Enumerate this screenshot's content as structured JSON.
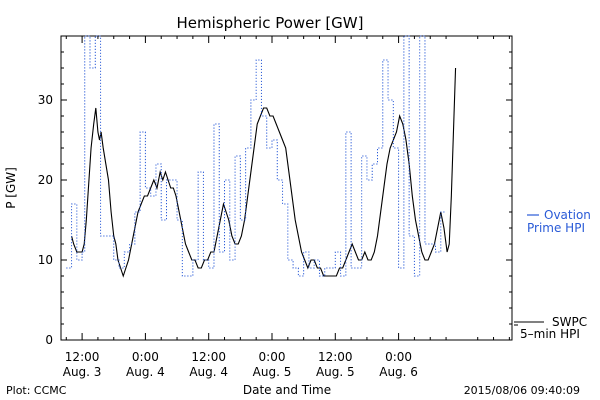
{
  "footer": {
    "plot_credit": "Plot: CCMC",
    "timestamp": "2015/08/06 09:40:09"
  },
  "chart_data": {
    "type": "line",
    "title": "Hemispheric Power [GW]",
    "xlabel": "Date and Time",
    "ylabel": "P [GW]",
    "ylim": [
      0,
      38
    ],
    "xlim_hours": [
      -4,
      81.5
    ],
    "yticks": [
      0,
      10,
      20,
      30
    ],
    "xticks": [
      {
        "hour": 0,
        "time": "12:00",
        "date": "Aug. 3"
      },
      {
        "hour": 12,
        "time": "0:00",
        "date": "Aug. 4"
      },
      {
        "hour": 24,
        "time": "12:00",
        "date": "Aug. 4"
      },
      {
        "hour": 36,
        "time": "0:00",
        "date": "Aug. 5"
      },
      {
        "hour": 48,
        "time": "12:00",
        "date": "Aug. 5"
      },
      {
        "hour": 60,
        "time": "0:00",
        "date": "Aug. 6"
      }
    ],
    "grid": false,
    "colors": {
      "ovation": "#2a5bd7",
      "swpc": "#000000"
    },
    "series": [
      {
        "name": "SWPC 5-min HPI",
        "label_lines": [
          "SWPC",
          "5–min HPI"
        ],
        "style": "solid",
        "color": "#000000",
        "points": [
          [
            -2.0,
            13
          ],
          [
            -1.6,
            12
          ],
          [
            -1.0,
            11
          ],
          [
            -0.5,
            11
          ],
          [
            0.0,
            11
          ],
          [
            0.4,
            12
          ],
          [
            0.8,
            15
          ],
          [
            1.2,
            19
          ],
          [
            1.7,
            24
          ],
          [
            2.2,
            27
          ],
          [
            2.6,
            29
          ],
          [
            3.0,
            26
          ],
          [
            3.3,
            25
          ],
          [
            3.6,
            26
          ],
          [
            4.0,
            24
          ],
          [
            4.5,
            22
          ],
          [
            5.0,
            20
          ],
          [
            5.5,
            16
          ],
          [
            6.0,
            13
          ],
          [
            6.4,
            12
          ],
          [
            6.8,
            10
          ],
          [
            7.3,
            9
          ],
          [
            7.8,
            8
          ],
          [
            8.3,
            9
          ],
          [
            8.8,
            10
          ],
          [
            9.4,
            12
          ],
          [
            10.0,
            14
          ],
          [
            10.6,
            16
          ],
          [
            11.2,
            17
          ],
          [
            11.8,
            18
          ],
          [
            12.4,
            18
          ],
          [
            13.0,
            19
          ],
          [
            13.6,
            20
          ],
          [
            14.2,
            19
          ],
          [
            14.8,
            21
          ],
          [
            15.3,
            20
          ],
          [
            15.8,
            21
          ],
          [
            16.3,
            20
          ],
          [
            16.8,
            19
          ],
          [
            17.3,
            19
          ],
          [
            17.8,
            18
          ],
          [
            18.4,
            16
          ],
          [
            19.0,
            14
          ],
          [
            19.6,
            12
          ],
          [
            20.2,
            11
          ],
          [
            20.8,
            10
          ],
          [
            21.4,
            10
          ],
          [
            22.0,
            9
          ],
          [
            22.6,
            9
          ],
          [
            23.2,
            10
          ],
          [
            23.8,
            10
          ],
          [
            24.4,
            11
          ],
          [
            25.0,
            11
          ],
          [
            25.6,
            13
          ],
          [
            26.2,
            15
          ],
          [
            26.8,
            17
          ],
          [
            27.3,
            16
          ],
          [
            27.8,
            15
          ],
          [
            28.4,
            13
          ],
          [
            29.0,
            12
          ],
          [
            29.6,
            12
          ],
          [
            30.2,
            13
          ],
          [
            30.8,
            15
          ],
          [
            31.4,
            18
          ],
          [
            32.0,
            21
          ],
          [
            32.6,
            24
          ],
          [
            33.2,
            27
          ],
          [
            33.8,
            28
          ],
          [
            34.4,
            29
          ],
          [
            35.0,
            29
          ],
          [
            35.6,
            28
          ],
          [
            36.2,
            28
          ],
          [
            36.8,
            27
          ],
          [
            37.4,
            26
          ],
          [
            38.0,
            25
          ],
          [
            38.6,
            24
          ],
          [
            39.2,
            21
          ],
          [
            39.8,
            18
          ],
          [
            40.4,
            15
          ],
          [
            41.0,
            13
          ],
          [
            41.6,
            11
          ],
          [
            42.2,
            10
          ],
          [
            42.8,
            9
          ],
          [
            43.4,
            10
          ],
          [
            44.0,
            10
          ],
          [
            44.6,
            9
          ],
          [
            45.2,
            9
          ],
          [
            45.8,
            8
          ],
          [
            46.4,
            8
          ],
          [
            47.0,
            8
          ],
          [
            47.6,
            8
          ],
          [
            48.2,
            8
          ],
          [
            48.8,
            9
          ],
          [
            49.4,
            9
          ],
          [
            50.0,
            10
          ],
          [
            50.6,
            11
          ],
          [
            51.2,
            12
          ],
          [
            51.8,
            11
          ],
          [
            52.4,
            10
          ],
          [
            53.0,
            10
          ],
          [
            53.6,
            11
          ],
          [
            54.2,
            10
          ],
          [
            54.8,
            10
          ],
          [
            55.4,
            11
          ],
          [
            56.0,
            13
          ],
          [
            56.6,
            16
          ],
          [
            57.2,
            19
          ],
          [
            57.8,
            22
          ],
          [
            58.4,
            24
          ],
          [
            59.0,
            25
          ],
          [
            59.6,
            26
          ],
          [
            60.2,
            28
          ],
          [
            60.8,
            27
          ],
          [
            61.4,
            25
          ],
          [
            62.0,
            22
          ],
          [
            62.6,
            18
          ],
          [
            63.2,
            15
          ],
          [
            63.8,
            13
          ],
          [
            64.4,
            11
          ],
          [
            65.0,
            10
          ],
          [
            65.6,
            10
          ],
          [
            66.2,
            11
          ],
          [
            66.8,
            12
          ],
          [
            67.4,
            14
          ],
          [
            68.0,
            16
          ],
          [
            68.6,
            14
          ],
          [
            69.2,
            11
          ],
          [
            69.6,
            12
          ],
          [
            70.0,
            18
          ],
          [
            70.4,
            26
          ],
          [
            70.8,
            34
          ]
        ]
      },
      {
        "name": "Ovation Prime HPI",
        "label_lines": [
          "Ovation",
          "Prime HPI"
        ],
        "style": "dotted-step",
        "color": "#2a5bd7",
        "points": [
          [
            -3.0,
            9
          ],
          [
            -2.0,
            17
          ],
          [
            -1.0,
            10
          ],
          [
            0.0,
            11
          ],
          [
            0.5,
            38
          ],
          [
            1.5,
            34
          ],
          [
            2.5,
            38
          ],
          [
            3.5,
            13
          ],
          [
            5.0,
            13
          ],
          [
            6.0,
            10
          ],
          [
            7.0,
            9
          ],
          [
            8.0,
            11
          ],
          [
            9.0,
            12
          ],
          [
            10.0,
            16
          ],
          [
            11.0,
            26
          ],
          [
            12.0,
            19
          ],
          [
            13.0,
            18
          ],
          [
            14.0,
            22
          ],
          [
            15.0,
            15
          ],
          [
            16.0,
            20
          ],
          [
            17.0,
            20
          ],
          [
            18.0,
            15
          ],
          [
            19.0,
            8
          ],
          [
            20.0,
            8
          ],
          [
            21.0,
            10
          ],
          [
            22.0,
            21
          ],
          [
            23.0,
            10
          ],
          [
            24.0,
            9
          ],
          [
            25.0,
            27
          ],
          [
            26.0,
            11
          ],
          [
            27.0,
            20
          ],
          [
            28.0,
            10
          ],
          [
            29.0,
            23
          ],
          [
            30.0,
            15
          ],
          [
            31.0,
            24
          ],
          [
            32.0,
            30
          ],
          [
            33.0,
            35
          ],
          [
            34.0,
            28
          ],
          [
            35.0,
            24
          ],
          [
            36.0,
            25
          ],
          [
            37.0,
            20
          ],
          [
            38.0,
            17
          ],
          [
            39.0,
            10
          ],
          [
            40.0,
            9
          ],
          [
            41.0,
            8
          ],
          [
            42.0,
            11
          ],
          [
            43.0,
            9
          ],
          [
            44.0,
            10
          ],
          [
            45.0,
            8
          ],
          [
            46.0,
            9
          ],
          [
            47.0,
            9
          ],
          [
            48.0,
            11
          ],
          [
            49.0,
            8
          ],
          [
            50.0,
            26
          ],
          [
            51.0,
            9
          ],
          [
            52.0,
            9
          ],
          [
            53.0,
            23
          ],
          [
            54.0,
            20
          ],
          [
            55.0,
            22
          ],
          [
            56.0,
            24
          ],
          [
            57.0,
            35
          ],
          [
            58.0,
            30
          ],
          [
            59.0,
            24
          ],
          [
            60.0,
            9
          ],
          [
            61.0,
            38
          ],
          [
            62.0,
            13
          ],
          [
            63.0,
            8
          ],
          [
            64.0,
            38
          ],
          [
            65.0,
            12
          ],
          [
            66.0,
            12
          ],
          [
            67.0,
            11
          ],
          [
            68.0,
            16
          ]
        ]
      }
    ]
  }
}
